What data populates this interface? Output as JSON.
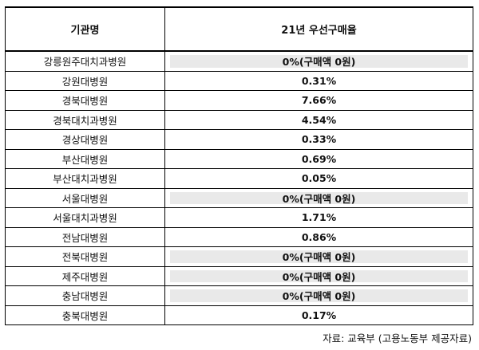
{
  "table": {
    "headers": [
      "기관명",
      "21년 우선구매율"
    ],
    "rows": [
      {
        "name": "강릉원주대치과병원",
        "rate": "0%(구매액 0원)",
        "highlight": true
      },
      {
        "name": "강원대병원",
        "rate": "0.31%",
        "highlight": false
      },
      {
        "name": "경북대병원",
        "rate": "7.66%",
        "highlight": false
      },
      {
        "name": "경북대치과병원",
        "rate": "4.54%",
        "highlight": false
      },
      {
        "name": "경상대병원",
        "rate": "0.33%",
        "highlight": false
      },
      {
        "name": "부산대병원",
        "rate": "0.69%",
        "highlight": false
      },
      {
        "name": "부산대치과병원",
        "rate": "0.05%",
        "highlight": false
      },
      {
        "name": "서울대병원",
        "rate": "0%(구매액 0원)",
        "highlight": true
      },
      {
        "name": "서울대치과병원",
        "rate": "1.71%",
        "highlight": false
      },
      {
        "name": "전남대병원",
        "rate": "0.86%",
        "highlight": false
      },
      {
        "name": "전북대병원",
        "rate": "0%(구매액 0원)",
        "highlight": true
      },
      {
        "name": "제주대병원",
        "rate": "0%(구매액 0원)",
        "highlight": true
      },
      {
        "name": "충남대병원",
        "rate": "0%(구매액 0원)",
        "highlight": true
      },
      {
        "name": "충북대병원",
        "rate": "0.17%",
        "highlight": false
      }
    ]
  },
  "source": "자료: 교육부 (고용노동부 제공자료)",
  "colors": {
    "highlight": "#e9e9e9",
    "border": "#000000"
  }
}
